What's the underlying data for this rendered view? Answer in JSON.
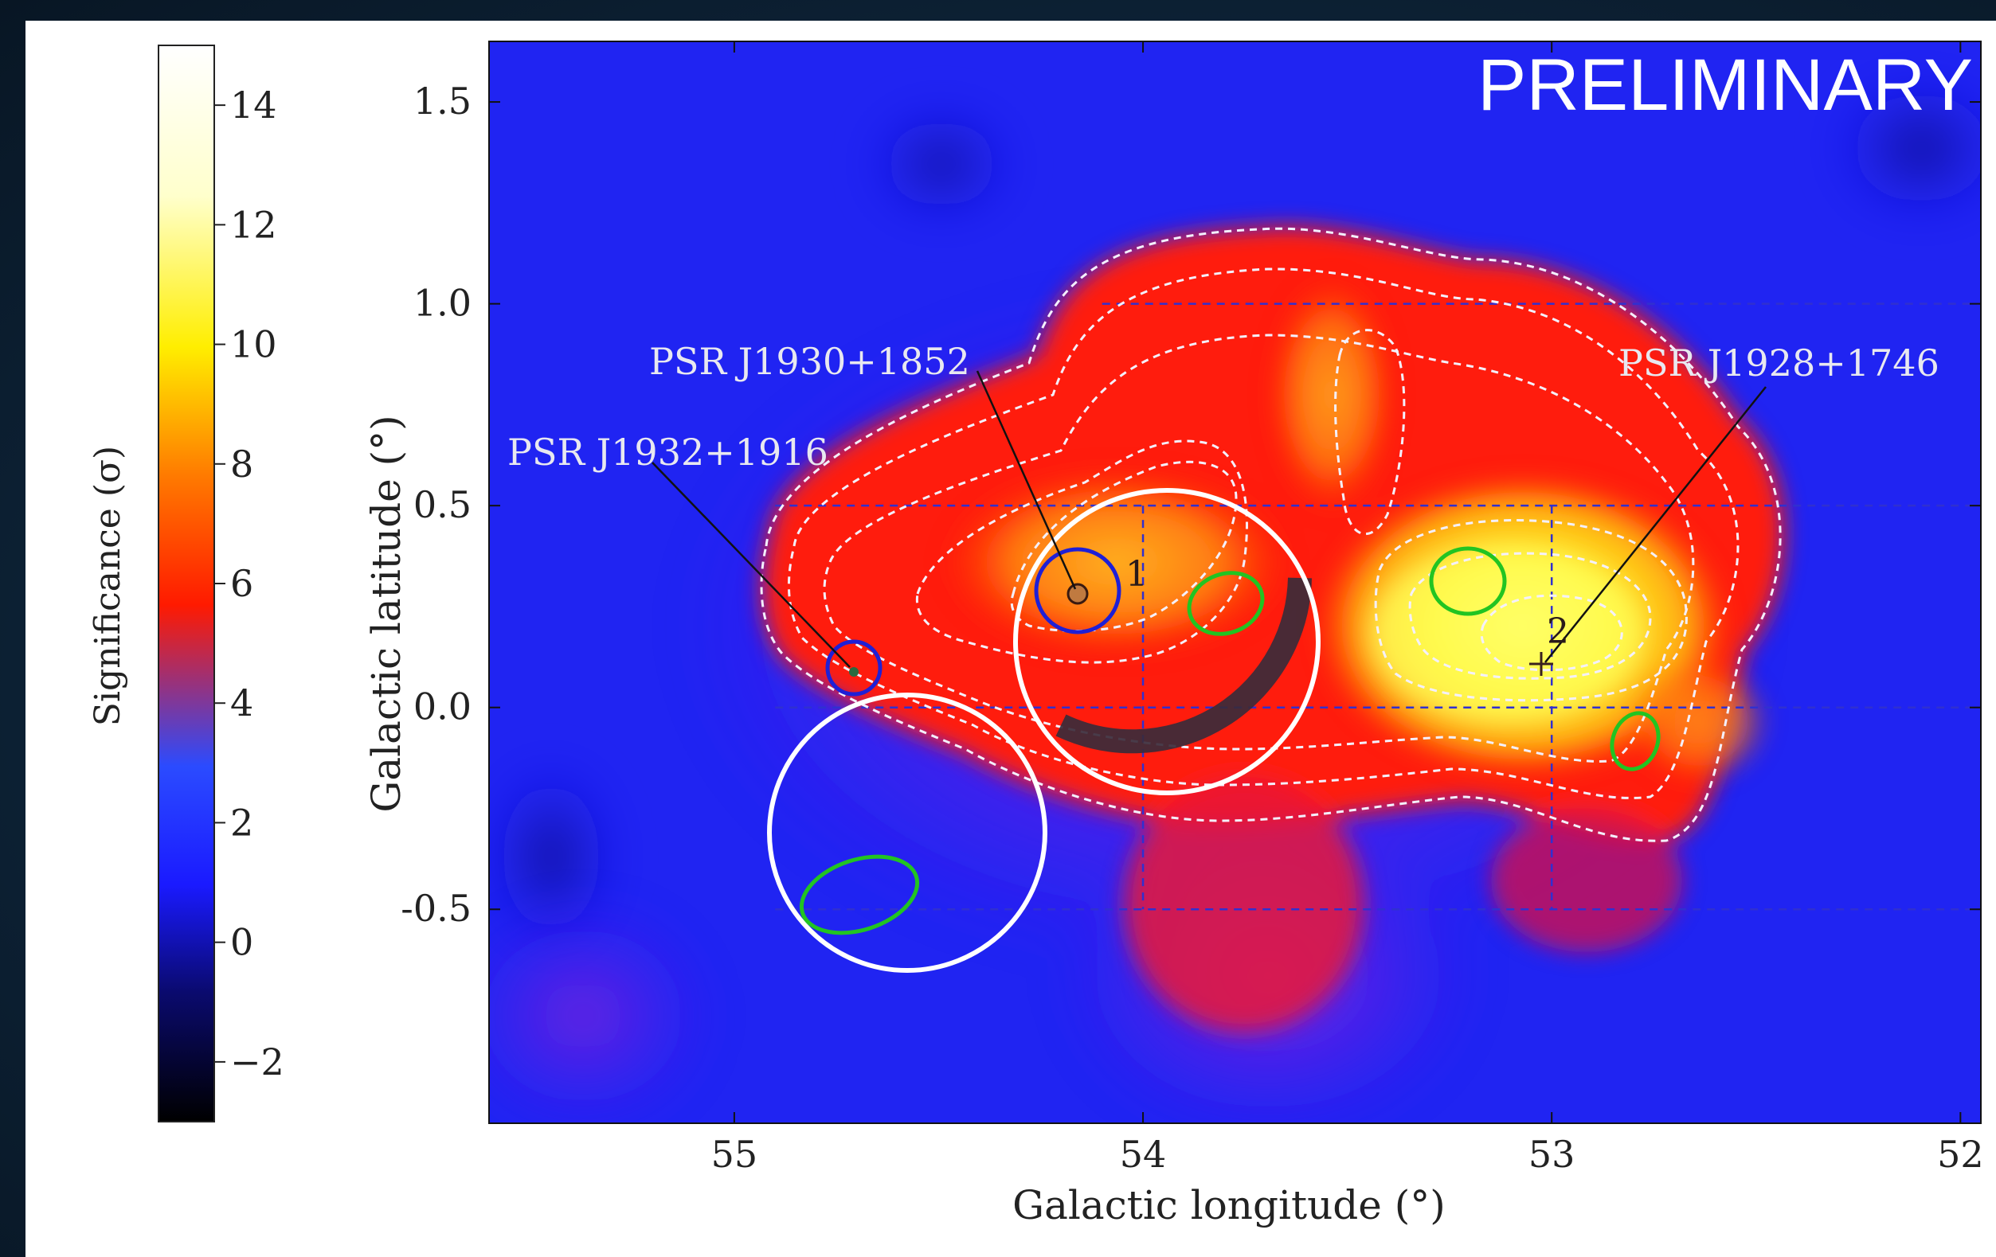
{
  "chart_data": {
    "type": "heatmap",
    "overlay_text": "PRELIMINARY",
    "xlabel": "Galactic longitude (°)",
    "ylabel": "Galactic latitude (°)",
    "xlim": [
      55.6,
      51.95
    ],
    "ylim": [
      -1.03,
      1.65
    ],
    "x_ticks": [
      55,
      54,
      53,
      52
    ],
    "x_tick_labels": [
      "55",
      "54",
      "53",
      "52"
    ],
    "y_ticks": [
      1.5,
      1.0,
      0.5,
      0.0,
      -0.5
    ],
    "y_tick_labels": [
      "1.5",
      "1.0",
      "0.5",
      "0.0",
      "-0.5"
    ],
    "grid": true,
    "colorbar": {
      "label": "Significance (σ)",
      "range": [
        -3,
        15
      ],
      "ticks": [
        14,
        12,
        10,
        8,
        6,
        4,
        2,
        0,
        -2
      ],
      "tick_labels": [
        "14",
        "12",
        "10",
        "8",
        "6",
        "4",
        "2",
        "0",
        "−2"
      ],
      "colormap": [
        "#000000",
        "#0a0a6e",
        "#1a1aff",
        "#2b4bff",
        "#ff1a00",
        "#ff7a00",
        "#ffee00",
        "#ffffcc",
        "#ffffff"
      ]
    },
    "sources": [
      {
        "name": "PSR J1932+1916",
        "l": 54.66,
        "b": 0.08
      },
      {
        "name": "PSR J1930+1852",
        "l": 54.1,
        "b": 0.28
      },
      {
        "name": "PSR J1928+1746",
        "l": 52.93,
        "b": 0.11
      }
    ],
    "hotspots": [
      {
        "label": "1",
        "l": 54.0,
        "b": 0.37
      },
      {
        "label": "2",
        "l": 52.93,
        "b": 0.24
      }
    ],
    "significance_peaks": [
      {
        "l": 53.1,
        "b": 0.25,
        "sigma": 13.5
      },
      {
        "l": 54.05,
        "b": 0.35,
        "sigma": 9.0
      },
      {
        "l": 53.6,
        "b": 0.7,
        "sigma": 7.0
      },
      {
        "l": 52.7,
        "b": 0.0,
        "sigma": 8.0
      }
    ]
  },
  "colors": {
    "slide_background": "#0d2236",
    "contour": "#ffffff",
    "grid": "#3030d0",
    "pulsar_circle": "#1f1fd6",
    "green_ellipse": "#22c422",
    "white_circle": "#ffffff",
    "arc": "#3a2b3a"
  }
}
